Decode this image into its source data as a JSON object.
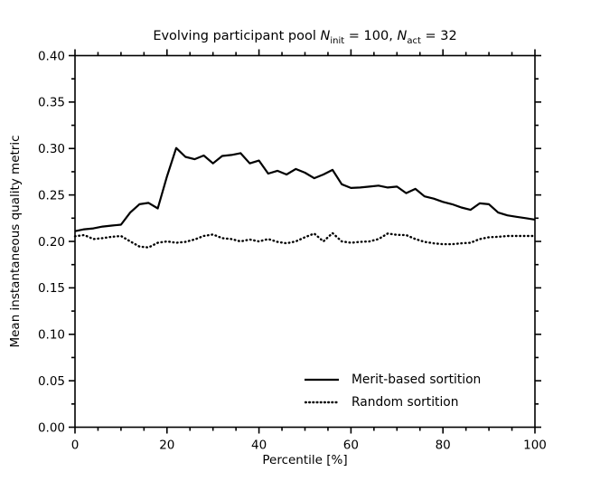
{
  "figure": {
    "background": "#ffffff",
    "foreground": "#000000"
  },
  "chart_data": {
    "type": "line",
    "title": "Evolving participant pool N_init = 100, N_act = 32",
    "title_segments": [
      {
        "text": "Evolving participant pool ",
        "style": "normal"
      },
      {
        "text": "N",
        "style": "italic"
      },
      {
        "text": "init",
        "style": "sub"
      },
      {
        "text": " = 100, ",
        "style": "normal"
      },
      {
        "text": "N",
        "style": "italic"
      },
      {
        "text": "act",
        "style": "sub"
      },
      {
        "text": " = 32",
        "style": "normal"
      }
    ],
    "xlabel": "Percentile [%]",
    "ylabel": "Mean instantaneous quality metric",
    "xlim": [
      0,
      100
    ],
    "ylim": [
      0,
      0.4
    ],
    "grid": false,
    "ticks_style": "outward ticks on all four spines",
    "xticks": {
      "values": [
        0,
        20,
        40,
        60,
        80,
        100
      ],
      "labels": [
        "0",
        "20",
        "40",
        "60",
        "80",
        "100"
      ],
      "minor_step": 5
    },
    "yticks": {
      "values": [
        0,
        0.05,
        0.1,
        0.15,
        0.2,
        0.25,
        0.3,
        0.35,
        0.4
      ],
      "labels": [
        "0.00",
        "0.05",
        "0.10",
        "0.15",
        "0.20",
        "0.25",
        "0.30",
        "0.35",
        "0.40"
      ],
      "minor_step": 0.025
    },
    "x": [
      0,
      2,
      4,
      6,
      8,
      10,
      12,
      14,
      16,
      18,
      20,
      22,
      24,
      26,
      28,
      30,
      32,
      34,
      36,
      38,
      40,
      42,
      44,
      46,
      48,
      50,
      52,
      54,
      56,
      58,
      60,
      62,
      64,
      66,
      68,
      70,
      72,
      74,
      76,
      78,
      80,
      82,
      84,
      86,
      88,
      90,
      92,
      94,
      96,
      98,
      100
    ],
    "series": [
      {
        "name": "Merit-based sortition",
        "line_style": "solid",
        "color": "#000000",
        "values": [
          0.211,
          0.213,
          0.214,
          0.216,
          0.217,
          0.218,
          0.231,
          0.24,
          0.2415,
          0.2355,
          0.27,
          0.3005,
          0.291,
          0.2885,
          0.2925,
          0.284,
          0.292,
          0.293,
          0.295,
          0.284,
          0.287,
          0.273,
          0.276,
          0.272,
          0.278,
          0.274,
          0.268,
          0.272,
          0.277,
          0.2615,
          0.2575,
          0.258,
          0.259,
          0.26,
          0.258,
          0.259,
          0.252,
          0.2565,
          0.2485,
          0.246,
          0.2425,
          0.24,
          0.2365,
          0.234,
          0.241,
          0.24,
          0.231,
          0.228,
          0.2265,
          0.225,
          0.2235
        ]
      },
      {
        "name": "Random sortition",
        "line_style": "dotted",
        "color": "#000000",
        "values": [
          0.2055,
          0.2068,
          0.2025,
          0.2035,
          0.205,
          0.2058,
          0.2,
          0.1945,
          0.1935,
          0.1985,
          0.2,
          0.1985,
          0.1995,
          0.202,
          0.2058,
          0.2075,
          0.2035,
          0.2025,
          0.2,
          0.202,
          0.2,
          0.2025,
          0.1995,
          0.198,
          0.2,
          0.2045,
          0.2085,
          0.2,
          0.209,
          0.2,
          0.1985,
          0.1995,
          0.2,
          0.2025,
          0.2085,
          0.207,
          0.2068,
          0.2025,
          0.1995,
          0.198,
          0.197,
          0.197,
          0.198,
          0.1985,
          0.2025,
          0.2045,
          0.205,
          0.2058,
          0.2058,
          0.2058,
          0.2058
        ]
      }
    ],
    "legend": {
      "position": "lower right",
      "frame": false,
      "entries": [
        "Merit-based sortition",
        "Random sortition"
      ]
    }
  }
}
